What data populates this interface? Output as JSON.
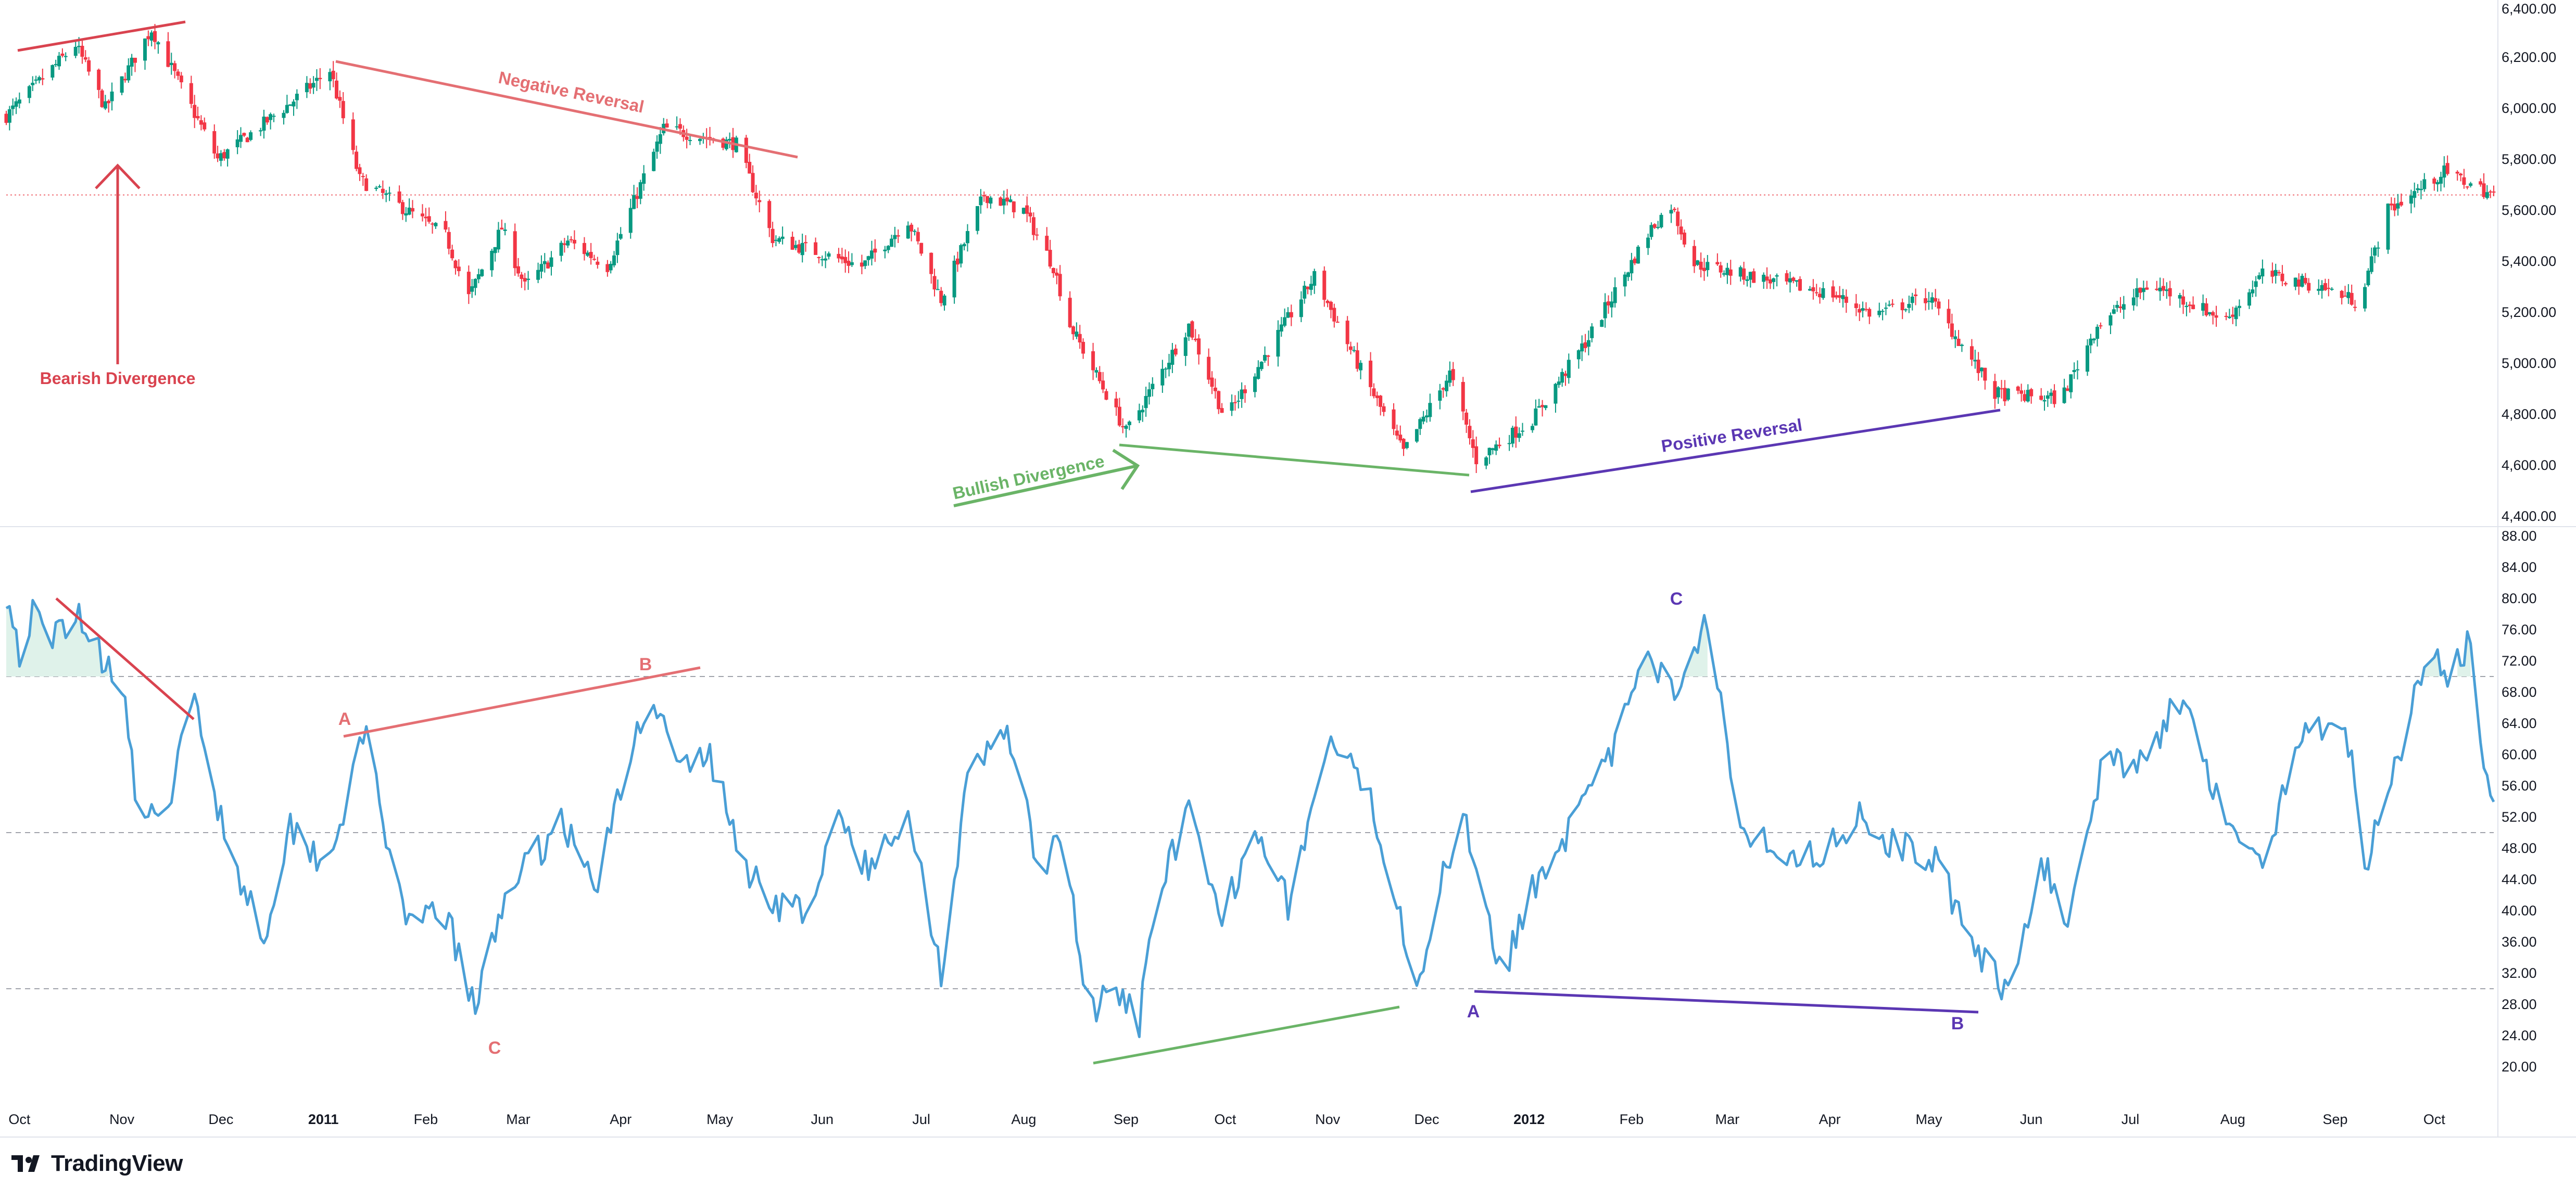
{
  "brand": {
    "name": "TradingView",
    "icon": "tradingview-logo-icon"
  },
  "colors": {
    "up": "#089981",
    "down": "#f23645",
    "rsi": "#4a9fd6",
    "red_annotation": "#d9434f",
    "salmon_annotation": "#e46f73",
    "green_annotation": "#6ab467",
    "purple_annotation": "#5b37b3",
    "level": "#a0a3ab",
    "last_price": "#f06d74",
    "fill": "#dff2ea"
  },
  "chart_data": [
    {
      "type": "candlestick",
      "title": "",
      "x_start": "2010-09-27",
      "x_end": "2012-10-19",
      "ylim": [
        4400,
        6400
      ],
      "yticks": [
        6400,
        6200,
        6000,
        5800,
        5600,
        5400,
        5200,
        5000,
        4800,
        4600,
        4400
      ],
      "ytick_labels": [
        "6,400.00",
        "6,200.00",
        "6,000.00",
        "5,800.00",
        "5,600.00",
        "5,400.00",
        "5,200.00",
        "5,000.00",
        "4,800.00",
        "4,600.00",
        "4,400.00"
      ],
      "last_price": 5660,
      "anchors": [
        {
          "x": "2010-09-27",
          "y": 5970
        },
        {
          "x": "2010-10-18",
          "y": 6250
        },
        {
          "x": "2010-10-27",
          "y": 6000
        },
        {
          "x": "2010-11-10",
          "y": 6310
        },
        {
          "x": "2010-11-30",
          "y": 5800
        },
        {
          "x": "2010-12-22",
          "y": 6020
        },
        {
          "x": "2011-01-03",
          "y": 6150
        },
        {
          "x": "2011-01-12",
          "y": 5720
        },
        {
          "x": "2011-02-07",
          "y": 5500
        },
        {
          "x": "2011-02-14",
          "y": 5260
        },
        {
          "x": "2011-02-24",
          "y": 5530
        },
        {
          "x": "2011-03-03",
          "y": 5300
        },
        {
          "x": "2011-03-16",
          "y": 5480
        },
        {
          "x": "2011-03-28",
          "y": 5380
        },
        {
          "x": "2011-04-14",
          "y": 5920
        },
        {
          "x": "2011-05-06",
          "y": 5860
        },
        {
          "x": "2011-05-17",
          "y": 5490
        },
        {
          "x": "2011-06-13",
          "y": 5380
        },
        {
          "x": "2011-06-27",
          "y": 5560
        },
        {
          "x": "2011-07-07",
          "y": 5250
        },
        {
          "x": "2011-07-20",
          "y": 5660
        },
        {
          "x": "2011-08-01",
          "y": 5600
        },
        {
          "x": "2011-08-10",
          "y": 5380
        },
        {
          "x": "2011-08-15",
          "y": 5150
        },
        {
          "x": "2011-09-01",
          "y": 4730
        },
        {
          "x": "2011-09-20",
          "y": 5150
        },
        {
          "x": "2011-10-01",
          "y": 4780
        },
        {
          "x": "2011-10-28",
          "y": 5340
        },
        {
          "x": "2011-11-10",
          "y": 5000
        },
        {
          "x": "2011-11-24",
          "y": 4650
        },
        {
          "x": "2011-12-08",
          "y": 4960
        },
        {
          "x": "2011-12-16",
          "y": 4620
        },
        {
          "x": "2012-01-02",
          "y": 4780
        },
        {
          "x": "2012-01-19",
          "y": 5100
        },
        {
          "x": "2012-02-07",
          "y": 5530
        },
        {
          "x": "2012-02-13",
          "y": 5620
        },
        {
          "x": "2012-02-20",
          "y": 5390
        },
        {
          "x": "2012-03-19",
          "y": 5310
        },
        {
          "x": "2012-04-02",
          "y": 5270
        },
        {
          "x": "2012-04-14",
          "y": 5190
        },
        {
          "x": "2012-05-01",
          "y": 5260
        },
        {
          "x": "2012-05-21",
          "y": 4880
        },
        {
          "x": "2012-06-10",
          "y": 4860
        },
        {
          "x": "2012-06-21",
          "y": 5150
        },
        {
          "x": "2012-07-07",
          "y": 5310
        },
        {
          "x": "2012-07-30",
          "y": 5170
        },
        {
          "x": "2012-08-10",
          "y": 5350
        },
        {
          "x": "2012-08-28",
          "y": 5300
        },
        {
          "x": "2012-09-08",
          "y": 5240
        },
        {
          "x": "2012-09-17",
          "y": 5600
        },
        {
          "x": "2012-10-04",
          "y": 5750
        },
        {
          "x": "2012-10-19",
          "y": 5660
        }
      ],
      "annotations": {
        "bearish_divergence": {
          "label": "Bearish Divergence"
        },
        "negative_reversal": {
          "label": "Negative Reversal"
        },
        "bullish_divergence": {
          "label": "Bullish Divergence"
        },
        "positive_reversal": {
          "label": "Positive Reversal"
        }
      }
    },
    {
      "type": "line",
      "series": [
        {
          "values_source": "anchors"
        }
      ],
      "ylim": [
        18,
        88
      ],
      "yticks": [
        88,
        84,
        80,
        76,
        72,
        68,
        64,
        60,
        56,
        52,
        48,
        44,
        40,
        36,
        32,
        28,
        24,
        20
      ],
      "ytick_labels": [
        "88.00",
        "84.00",
        "80.00",
        "76.00",
        "72.00",
        "68.00",
        "64.00",
        "60.00",
        "56.00",
        "52.00",
        "48.00",
        "44.00",
        "40.00",
        "36.00",
        "32.00",
        "28.00",
        "24.00",
        "20.00"
      ],
      "levels": [
        70,
        50,
        30
      ],
      "anchors": [
        {
          "x": "2010-09-27",
          "y": 81
        },
        {
          "x": "2010-10-01",
          "y": 73
        },
        {
          "x": "2010-10-05",
          "y": 78
        },
        {
          "x": "2010-10-10",
          "y": 74
        },
        {
          "x": "2010-10-18",
          "y": 79
        },
        {
          "x": "2010-10-25",
          "y": 73
        },
        {
          "x": "2010-11-01",
          "y": 70
        },
        {
          "x": "2010-11-05",
          "y": 55
        },
        {
          "x": "2010-11-12",
          "y": 50
        },
        {
          "x": "2010-11-20",
          "y": 62
        },
        {
          "x": "2010-11-23",
          "y": 67
        },
        {
          "x": "2010-12-01",
          "y": 52
        },
        {
          "x": "2010-12-07",
          "y": 44
        },
        {
          "x": "2010-12-14",
          "y": 37
        },
        {
          "x": "2010-12-22",
          "y": 51
        },
        {
          "x": "2011-01-02",
          "y": 46
        },
        {
          "x": "2011-01-07",
          "y": 53
        },
        {
          "x": "2011-01-14",
          "y": 63
        },
        {
          "x": "2011-01-20",
          "y": 50
        },
        {
          "x": "2011-01-26",
          "y": 37
        },
        {
          "x": "2011-02-06",
          "y": 41
        },
        {
          "x": "2011-02-16",
          "y": 27
        },
        {
          "x": "2011-02-26",
          "y": 44
        },
        {
          "x": "2011-03-05",
          "y": 46
        },
        {
          "x": "2011-03-14",
          "y": 52
        },
        {
          "x": "2011-03-24",
          "y": 43
        },
        {
          "x": "2011-04-01",
          "y": 55
        },
        {
          "x": "2011-04-10",
          "y": 69
        },
        {
          "x": "2011-04-18",
          "y": 58
        },
        {
          "x": "2011-04-28",
          "y": 60
        },
        {
          "x": "2011-05-08",
          "y": 46
        },
        {
          "x": "2011-05-18",
          "y": 41
        },
        {
          "x": "2011-05-30",
          "y": 40
        },
        {
          "x": "2011-06-05",
          "y": 53
        },
        {
          "x": "2011-06-15",
          "y": 45
        },
        {
          "x": "2011-06-28",
          "y": 52
        },
        {
          "x": "2011-07-07",
          "y": 32
        },
        {
          "x": "2011-07-15",
          "y": 56
        },
        {
          "x": "2011-07-27",
          "y": 64
        },
        {
          "x": "2011-08-06",
          "y": 44
        },
        {
          "x": "2011-08-13",
          "y": 50
        },
        {
          "x": "2011-08-20",
          "y": 27
        },
        {
          "x": "2011-08-29",
          "y": 29
        },
        {
          "x": "2011-09-05",
          "y": 26
        },
        {
          "x": "2011-09-12",
          "y": 45
        },
        {
          "x": "2011-09-20",
          "y": 52
        },
        {
          "x": "2011-09-30",
          "y": 38
        },
        {
          "x": "2011-10-10",
          "y": 52
        },
        {
          "x": "2011-10-20",
          "y": 41
        },
        {
          "x": "2011-11-02",
          "y": 62
        },
        {
          "x": "2011-11-15",
          "y": 53
        },
        {
          "x": "2011-11-28",
          "y": 31
        },
        {
          "x": "2011-12-06",
          "y": 44
        },
        {
          "x": "2011-12-12",
          "y": 53
        },
        {
          "x": "2011-12-24",
          "y": 32
        },
        {
          "x": "2012-01-04",
          "y": 45
        },
        {
          "x": "2012-01-14",
          "y": 51
        },
        {
          "x": "2012-01-24",
          "y": 58
        },
        {
          "x": "2012-02-05",
          "y": 72
        },
        {
          "x": "2012-02-14",
          "y": 68
        },
        {
          "x": "2012-02-24",
          "y": 78
        },
        {
          "x": "2012-03-05",
          "y": 51
        },
        {
          "x": "2012-03-16",
          "y": 48
        },
        {
          "x": "2012-03-28",
          "y": 47
        },
        {
          "x": "2012-04-10",
          "y": 52
        },
        {
          "x": "2012-04-22",
          "y": 48
        },
        {
          "x": "2012-05-03",
          "y": 47
        },
        {
          "x": "2012-05-14",
          "y": 35
        },
        {
          "x": "2012-05-24",
          "y": 30
        },
        {
          "x": "2012-06-05",
          "y": 46
        },
        {
          "x": "2012-06-12",
          "y": 38
        },
        {
          "x": "2012-06-22",
          "y": 58
        },
        {
          "x": "2012-07-05",
          "y": 60
        },
        {
          "x": "2012-07-18",
          "y": 68
        },
        {
          "x": "2012-07-28",
          "y": 53
        },
        {
          "x": "2012-08-10",
          "y": 45
        },
        {
          "x": "2012-08-22",
          "y": 63
        },
        {
          "x": "2012-09-04",
          "y": 65
        },
        {
          "x": "2012-09-10",
          "y": 46
        },
        {
          "x": "2012-09-20",
          "y": 60
        },
        {
          "x": "2012-09-29",
          "y": 73
        },
        {
          "x": "2012-10-06",
          "y": 70
        },
        {
          "x": "2012-10-12",
          "y": 75
        },
        {
          "x": "2012-10-15",
          "y": 60
        },
        {
          "x": "2012-10-19",
          "y": 56
        }
      ],
      "annotations": {
        "A_1": "A",
        "B_1": "B",
        "C_1": "C",
        "A_2": "A",
        "B_2": "B",
        "C_2": "C"
      }
    }
  ],
  "x_axis": {
    "labels": [
      {
        "text": "Oct",
        "date": "2010-10-01",
        "bold": false
      },
      {
        "text": "Nov",
        "date": "2010-11-01",
        "bold": false
      },
      {
        "text": "Dec",
        "date": "2010-12-01",
        "bold": false
      },
      {
        "text": "2011",
        "date": "2011-01-01",
        "bold": true
      },
      {
        "text": "Feb",
        "date": "2011-02-01",
        "bold": false
      },
      {
        "text": "Mar",
        "date": "2011-03-01",
        "bold": false
      },
      {
        "text": "Apr",
        "date": "2011-04-01",
        "bold": false
      },
      {
        "text": "May",
        "date": "2011-05-01",
        "bold": false
      },
      {
        "text": "Jun",
        "date": "2011-06-01",
        "bold": false
      },
      {
        "text": "Jul",
        "date": "2011-07-01",
        "bold": false
      },
      {
        "text": "Aug",
        "date": "2011-08-01",
        "bold": false
      },
      {
        "text": "Sep",
        "date": "2011-09-01",
        "bold": false
      },
      {
        "text": "Oct",
        "date": "2011-10-01",
        "bold": false
      },
      {
        "text": "Nov",
        "date": "2011-11-01",
        "bold": false
      },
      {
        "text": "Dec",
        "date": "2011-12-01",
        "bold": false
      },
      {
        "text": "2012",
        "date": "2012-01-01",
        "bold": true
      },
      {
        "text": "Feb",
        "date": "2012-02-01",
        "bold": false
      },
      {
        "text": "Mar",
        "date": "2012-03-01",
        "bold": false
      },
      {
        "text": "Apr",
        "date": "2012-04-01",
        "bold": false
      },
      {
        "text": "May",
        "date": "2012-05-01",
        "bold": false
      },
      {
        "text": "Jun",
        "date": "2012-06-01",
        "bold": false
      },
      {
        "text": "Jul",
        "date": "2012-07-01",
        "bold": false
      },
      {
        "text": "Aug",
        "date": "2012-08-01",
        "bold": false
      },
      {
        "text": "Sep",
        "date": "2012-09-01",
        "bold": false
      },
      {
        "text": "Oct",
        "date": "2012-10-01",
        "bold": false
      }
    ]
  }
}
